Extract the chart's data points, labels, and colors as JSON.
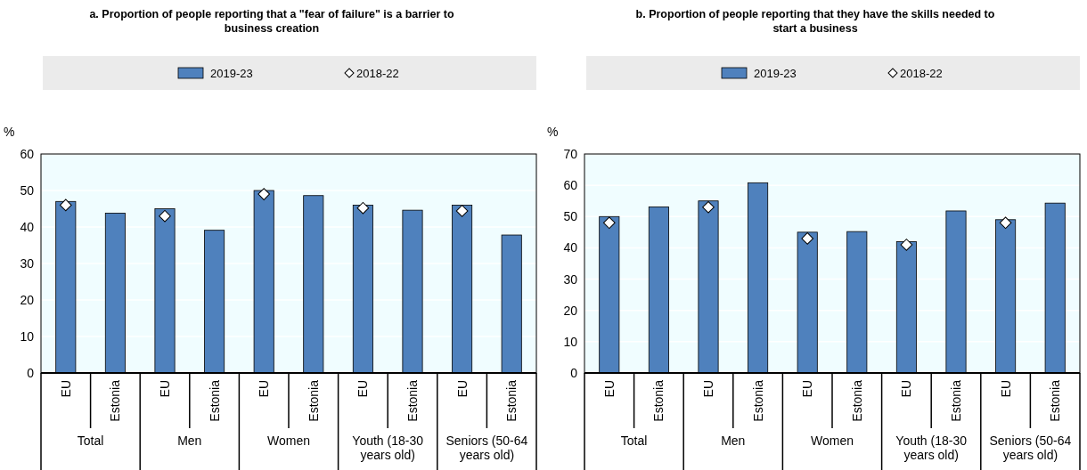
{
  "chart_data": [
    {
      "type": "bar",
      "title": "a. Proportion of people reporting that a \"fear of failure\" is a barrier to business creation",
      "ylabel": "%",
      "categories": [
        "EU",
        "Estonia",
        "EU",
        "Estonia",
        "EU",
        "Estonia",
        "EU",
        "Estonia",
        "EU",
        "Estonia"
      ],
      "annotations": [
        "Total",
        "Men",
        "Women",
        "Youth (18-30 years old)",
        "Seniors (50-64 years old)"
      ],
      "series": [
        {
          "name": "2019-23",
          "color": "#4f81bd",
          "values": [
            47,
            43.8,
            45,
            39.1,
            50,
            48.6,
            46,
            44.6,
            46,
            37.8
          ]
        },
        {
          "name": "2018-22",
          "type": "scatter",
          "marker": "diamond",
          "color": "#ffffff",
          "values": [
            46,
            null,
            43,
            null,
            49,
            null,
            45.2,
            null,
            44.4,
            null
          ]
        }
      ],
      "ylim": [
        0,
        60
      ],
      "yticks": [
        0,
        10,
        20,
        30,
        40,
        50,
        60
      ],
      "grid": "y",
      "legend": "top"
    },
    {
      "type": "bar",
      "title": "b. Proportion of people reporting that they have the skills needed to start a business",
      "ylabel": "%",
      "categories": [
        "EU",
        "Estonia",
        "EU",
        "Estonia",
        "EU",
        "Estonia",
        "EU",
        "Estonia",
        "EU",
        "Estonia"
      ],
      "annotations": [
        "Total",
        "Men",
        "Women",
        "Youth (18-30 years old)",
        "Seniors (50-64 years old)"
      ],
      "series": [
        {
          "name": "2019-23",
          "color": "#4f81bd",
          "values": [
            50,
            53.1,
            55,
            60.8,
            45,
            45.2,
            42,
            51.8,
            49,
            54.3
          ]
        },
        {
          "name": "2018-22",
          "type": "scatter",
          "marker": "diamond",
          "color": "#ffffff",
          "values": [
            48,
            null,
            53,
            null,
            43,
            null,
            41,
            null,
            48,
            null
          ]
        }
      ],
      "ylim": [
        0,
        70
      ],
      "yticks": [
        0,
        10,
        20,
        30,
        40,
        50,
        60,
        70
      ],
      "grid": "y",
      "legend": "top"
    }
  ]
}
